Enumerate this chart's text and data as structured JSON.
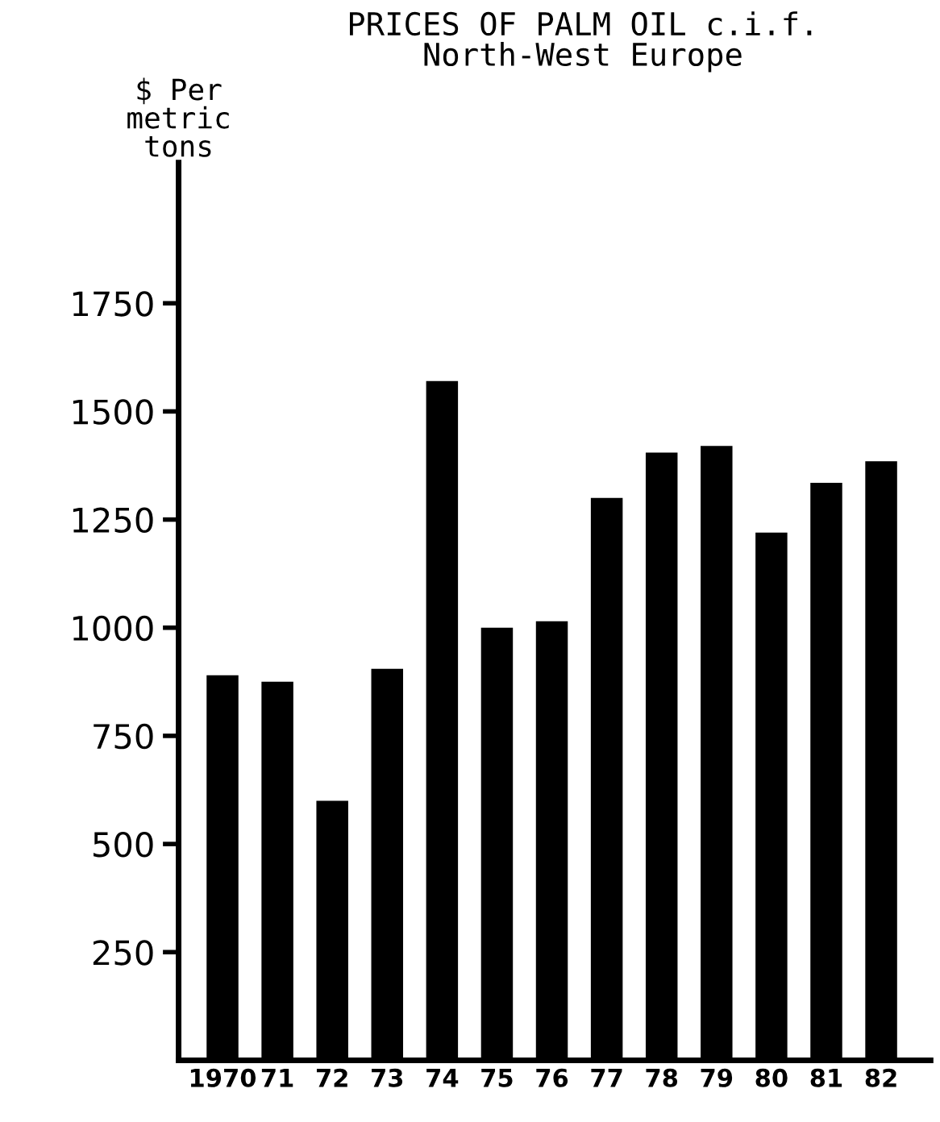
{
  "chart_data": {
    "type": "bar",
    "title": "PRICES OF PALM OIL c.i.f.\nNorth-West Europe",
    "ylabel": "$ Per\nmetric\ntons",
    "categories": [
      "1970",
      "71",
      "72",
      "73",
      "74",
      "75",
      "76",
      "77",
      "78",
      "79",
      "80",
      "81",
      "82"
    ],
    "values": [
      890,
      875,
      600,
      905,
      1570,
      1000,
      1015,
      1300,
      1405,
      1420,
      1220,
      1335,
      1385
    ],
    "color": "#000000",
    "ylim": [
      0,
      2075
    ],
    "yticks": [
      250,
      500,
      750,
      1000,
      1250,
      1500,
      1750
    ],
    "grid": false
  }
}
